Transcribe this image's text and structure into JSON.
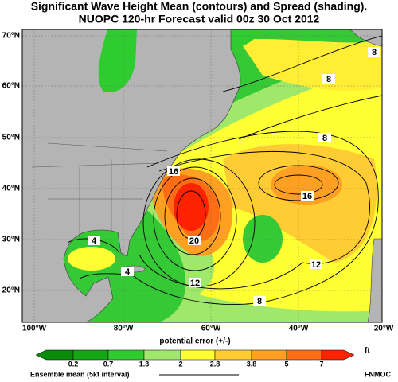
{
  "title": "Significant Wave Height Mean (contours) and Spread (shading).",
  "subtitle": "NUOPC 120-hr Forecast valid 00z 30 Oct 2012",
  "lat_labels": [
    "70°N",
    "60°N",
    "50°N",
    "40°N",
    "30°N",
    "20°N"
  ],
  "lon_labels": [
    "100°W",
    "80°W",
    "60°W",
    "40°W",
    "20°W"
  ],
  "contour_labels": [
    16,
    20,
    12,
    8,
    12,
    16,
    8,
    8,
    8,
    4,
    4
  ],
  "legend": {
    "title": "potential error (+/-)",
    "unit": "ft",
    "levels": [
      0.2,
      0.7,
      1.3,
      2,
      2.8,
      3.8,
      5,
      7
    ],
    "colors": [
      "#078c07",
      "#13a813",
      "#2fcc2f",
      "#9fe86a",
      "#ffff33",
      "#ffcc33",
      "#ffa022",
      "#ff6e14",
      "#ff2200"
    ]
  },
  "mean_label": "Ensemble mean (5kt interval)",
  "credit": "FNMOC"
}
